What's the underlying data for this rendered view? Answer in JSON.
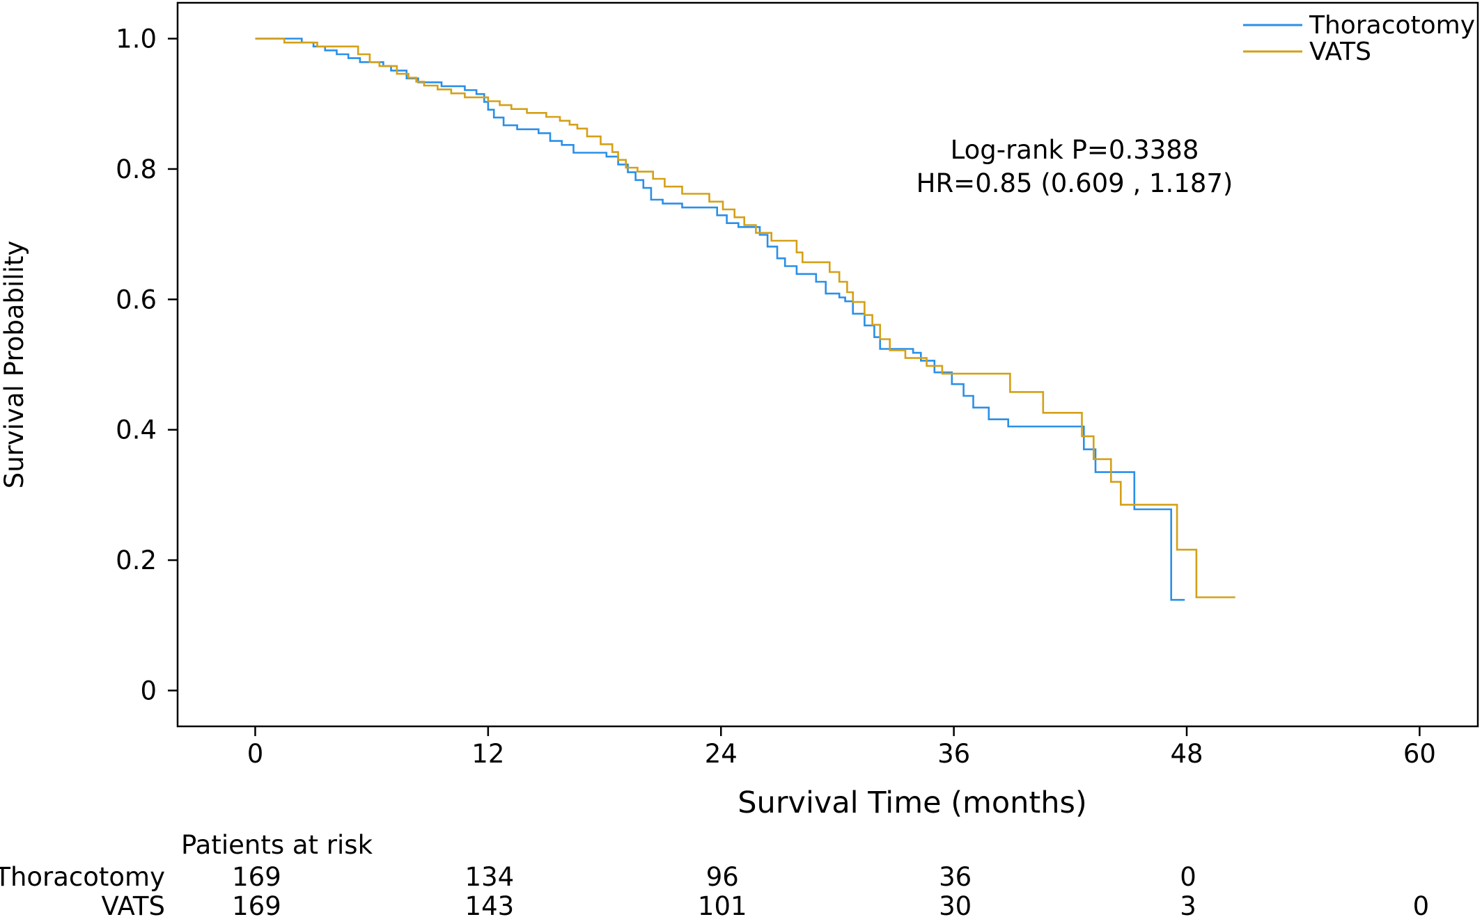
{
  "chart_data": {
    "type": "line",
    "xlabel": "Survival Time (months)",
    "ylabel": "Survival Probability",
    "xlim": [
      -4,
      63
    ],
    "ylim": [
      -0.055,
      1.055
    ],
    "xticks": [
      0,
      12,
      24,
      36,
      48,
      60
    ],
    "yticks": [
      0,
      0.2,
      0.4,
      0.6,
      0.8,
      1.0
    ],
    "ytick_labels": [
      "0",
      "0.2",
      "0.4",
      "0.6",
      "0.8",
      "1.0"
    ],
    "grid": false,
    "legend_position": "top-right",
    "annotations": [
      "Log-rank P=0.3388",
      "HR=0.85 (0.609 , 1.187)"
    ],
    "series": [
      {
        "name": "Thoracotomy",
        "color": "#2a8fe8",
        "step": true,
        "points": [
          [
            0,
            1.0
          ],
          [
            2.4,
            1.0
          ],
          [
            2.4,
            0.994
          ],
          [
            3.0,
            0.994
          ],
          [
            3.0,
            0.988
          ],
          [
            3.6,
            0.988
          ],
          [
            3.6,
            0.982
          ],
          [
            4.2,
            0.982
          ],
          [
            4.2,
            0.976
          ],
          [
            4.8,
            0.976
          ],
          [
            4.8,
            0.97
          ],
          [
            5.4,
            0.97
          ],
          [
            5.4,
            0.964
          ],
          [
            6.6,
            0.964
          ],
          [
            6.6,
            0.958
          ],
          [
            7.0,
            0.958
          ],
          [
            7.0,
            0.951
          ],
          [
            7.8,
            0.951
          ],
          [
            7.8,
            0.939
          ],
          [
            8.4,
            0.939
          ],
          [
            8.4,
            0.933
          ],
          [
            9.6,
            0.933
          ],
          [
            9.6,
            0.927
          ],
          [
            10.8,
            0.927
          ],
          [
            10.8,
            0.921
          ],
          [
            11.4,
            0.921
          ],
          [
            11.4,
            0.915
          ],
          [
            11.8,
            0.915
          ],
          [
            11.8,
            0.903
          ],
          [
            12.0,
            0.903
          ],
          [
            12.0,
            0.891
          ],
          [
            12.3,
            0.891
          ],
          [
            12.3,
            0.879
          ],
          [
            12.8,
            0.879
          ],
          [
            12.8,
            0.867
          ],
          [
            13.5,
            0.867
          ],
          [
            13.5,
            0.861
          ],
          [
            14.6,
            0.861
          ],
          [
            14.6,
            0.855
          ],
          [
            15.2,
            0.855
          ],
          [
            15.2,
            0.843
          ],
          [
            15.8,
            0.843
          ],
          [
            15.8,
            0.837
          ],
          [
            16.4,
            0.837
          ],
          [
            16.4,
            0.825
          ],
          [
            18.1,
            0.825
          ],
          [
            18.1,
            0.819
          ],
          [
            18.7,
            0.819
          ],
          [
            18.7,
            0.807
          ],
          [
            19.2,
            0.807
          ],
          [
            19.2,
            0.795
          ],
          [
            19.6,
            0.795
          ],
          [
            19.6,
            0.783
          ],
          [
            20.0,
            0.783
          ],
          [
            20.0,
            0.771
          ],
          [
            20.4,
            0.771
          ],
          [
            20.4,
            0.753
          ],
          [
            21.0,
            0.753
          ],
          [
            21.0,
            0.747
          ],
          [
            22.0,
            0.747
          ],
          [
            22.0,
            0.741
          ],
          [
            23.8,
            0.741
          ],
          [
            23.8,
            0.729
          ],
          [
            24.3,
            0.729
          ],
          [
            24.3,
            0.717
          ],
          [
            24.9,
            0.717
          ],
          [
            24.9,
            0.711
          ],
          [
            26.0,
            0.711
          ],
          [
            26.0,
            0.699
          ],
          [
            26.4,
            0.699
          ],
          [
            26.4,
            0.681
          ],
          [
            26.9,
            0.681
          ],
          [
            26.9,
            0.663
          ],
          [
            27.3,
            0.663
          ],
          [
            27.3,
            0.651
          ],
          [
            27.9,
            0.651
          ],
          [
            27.9,
            0.639
          ],
          [
            28.9,
            0.639
          ],
          [
            28.9,
            0.627
          ],
          [
            29.4,
            0.627
          ],
          [
            29.4,
            0.609
          ],
          [
            30.1,
            0.609
          ],
          [
            30.1,
            0.603
          ],
          [
            30.4,
            0.603
          ],
          [
            30.4,
            0.597
          ],
          [
            30.8,
            0.597
          ],
          [
            30.8,
            0.578
          ],
          [
            31.4,
            0.578
          ],
          [
            31.4,
            0.56
          ],
          [
            31.9,
            0.56
          ],
          [
            31.9,
            0.542
          ],
          [
            32.2,
            0.542
          ],
          [
            32.2,
            0.524
          ],
          [
            33.9,
            0.524
          ],
          [
            33.9,
            0.518
          ],
          [
            34.3,
            0.518
          ],
          [
            34.3,
            0.506
          ],
          [
            35.0,
            0.506
          ],
          [
            35.0,
            0.488
          ],
          [
            35.9,
            0.488
          ],
          [
            35.9,
            0.47
          ],
          [
            36.5,
            0.47
          ],
          [
            36.5,
            0.452
          ],
          [
            37.0,
            0.452
          ],
          [
            37.0,
            0.434
          ],
          [
            37.8,
            0.434
          ],
          [
            37.8,
            0.416
          ],
          [
            38.8,
            0.416
          ],
          [
            38.8,
            0.405
          ],
          [
            42.7,
            0.405
          ],
          [
            42.7,
            0.37
          ],
          [
            43.3,
            0.37
          ],
          [
            43.3,
            0.335
          ],
          [
            45.3,
            0.335
          ],
          [
            45.3,
            0.278
          ],
          [
            47.2,
            0.278
          ],
          [
            47.2,
            0.139
          ],
          [
            47.9,
            0.139
          ]
        ]
      },
      {
        "name": "VATS",
        "color": "#d4a017",
        "step": true,
        "points": [
          [
            0,
            1.0
          ],
          [
            1.5,
            1.0
          ],
          [
            1.5,
            0.994
          ],
          [
            3.2,
            0.994
          ],
          [
            3.2,
            0.988
          ],
          [
            5.3,
            0.988
          ],
          [
            5.3,
            0.976
          ],
          [
            5.9,
            0.976
          ],
          [
            5.9,
            0.964
          ],
          [
            6.4,
            0.964
          ],
          [
            6.4,
            0.958
          ],
          [
            7.3,
            0.958
          ],
          [
            7.3,
            0.946
          ],
          [
            7.9,
            0.946
          ],
          [
            7.9,
            0.94
          ],
          [
            8.3,
            0.94
          ],
          [
            8.3,
            0.934
          ],
          [
            8.7,
            0.934
          ],
          [
            8.7,
            0.928
          ],
          [
            9.4,
            0.928
          ],
          [
            9.4,
            0.922
          ],
          [
            10.1,
            0.922
          ],
          [
            10.1,
            0.916
          ],
          [
            10.8,
            0.916
          ],
          [
            10.8,
            0.91
          ],
          [
            12.0,
            0.91
          ],
          [
            12.0,
            0.904
          ],
          [
            12.6,
            0.904
          ],
          [
            12.6,
            0.898
          ],
          [
            13.2,
            0.898
          ],
          [
            13.2,
            0.892
          ],
          [
            14.0,
            0.892
          ],
          [
            14.0,
            0.886
          ],
          [
            15.0,
            0.886
          ],
          [
            15.0,
            0.88
          ],
          [
            15.7,
            0.88
          ],
          [
            15.7,
            0.874
          ],
          [
            16.2,
            0.874
          ],
          [
            16.2,
            0.868
          ],
          [
            16.6,
            0.868
          ],
          [
            16.6,
            0.862
          ],
          [
            17.1,
            0.862
          ],
          [
            17.1,
            0.85
          ],
          [
            17.8,
            0.85
          ],
          [
            17.8,
            0.838
          ],
          [
            18.4,
            0.838
          ],
          [
            18.4,
            0.826
          ],
          [
            18.7,
            0.826
          ],
          [
            18.7,
            0.814
          ],
          [
            19.1,
            0.814
          ],
          [
            19.1,
            0.802
          ],
          [
            19.7,
            0.802
          ],
          [
            19.7,
            0.796
          ],
          [
            20.5,
            0.796
          ],
          [
            20.5,
            0.785
          ],
          [
            21.1,
            0.785
          ],
          [
            21.1,
            0.773
          ],
          [
            22.0,
            0.773
          ],
          [
            22.0,
            0.762
          ],
          [
            23.4,
            0.762
          ],
          [
            23.4,
            0.75
          ],
          [
            24.1,
            0.75
          ],
          [
            24.1,
            0.738
          ],
          [
            24.7,
            0.738
          ],
          [
            24.7,
            0.726
          ],
          [
            25.2,
            0.726
          ],
          [
            25.2,
            0.714
          ],
          [
            25.8,
            0.714
          ],
          [
            25.8,
            0.702
          ],
          [
            26.6,
            0.702
          ],
          [
            26.6,
            0.69
          ],
          [
            27.9,
            0.69
          ],
          [
            27.9,
            0.672
          ],
          [
            28.2,
            0.672
          ],
          [
            28.2,
            0.657
          ],
          [
            29.6,
            0.657
          ],
          [
            29.6,
            0.642
          ],
          [
            30.1,
            0.642
          ],
          [
            30.1,
            0.627
          ],
          [
            30.5,
            0.627
          ],
          [
            30.5,
            0.611
          ],
          [
            30.8,
            0.611
          ],
          [
            30.8,
            0.596
          ],
          [
            31.4,
            0.596
          ],
          [
            31.4,
            0.576
          ],
          [
            31.8,
            0.576
          ],
          [
            31.8,
            0.561
          ],
          [
            32.2,
            0.561
          ],
          [
            32.2,
            0.539
          ],
          [
            32.7,
            0.539
          ],
          [
            32.7,
            0.522
          ],
          [
            33.5,
            0.522
          ],
          [
            33.5,
            0.51
          ],
          [
            34.6,
            0.51
          ],
          [
            34.6,
            0.498
          ],
          [
            35.4,
            0.498
          ],
          [
            35.4,
            0.486
          ],
          [
            38.9,
            0.486
          ],
          [
            38.9,
            0.458
          ],
          [
            40.6,
            0.458
          ],
          [
            40.6,
            0.426
          ],
          [
            42.6,
            0.426
          ],
          [
            42.6,
            0.39
          ],
          [
            43.2,
            0.39
          ],
          [
            43.2,
            0.355
          ],
          [
            44.1,
            0.355
          ],
          [
            44.1,
            0.32
          ],
          [
            44.6,
            0.32
          ],
          [
            44.6,
            0.285
          ],
          [
            47.5,
            0.285
          ],
          [
            47.5,
            0.216
          ],
          [
            48.5,
            0.216
          ],
          [
            48.5,
            0.143
          ],
          [
            50.5,
            0.143
          ]
        ]
      }
    ],
    "risk_table": {
      "title": "Patients at risk",
      "times": [
        0,
        12,
        24,
        36,
        48,
        60
      ],
      "rows": [
        {
          "name": "Thoracotomy",
          "counts": [
            "169",
            "134",
            "96",
            "36",
            "0",
            ""
          ]
        },
        {
          "name": "VATS",
          "counts": [
            "169",
            "143",
            "101",
            "30",
            "3",
            "0"
          ]
        }
      ]
    }
  }
}
